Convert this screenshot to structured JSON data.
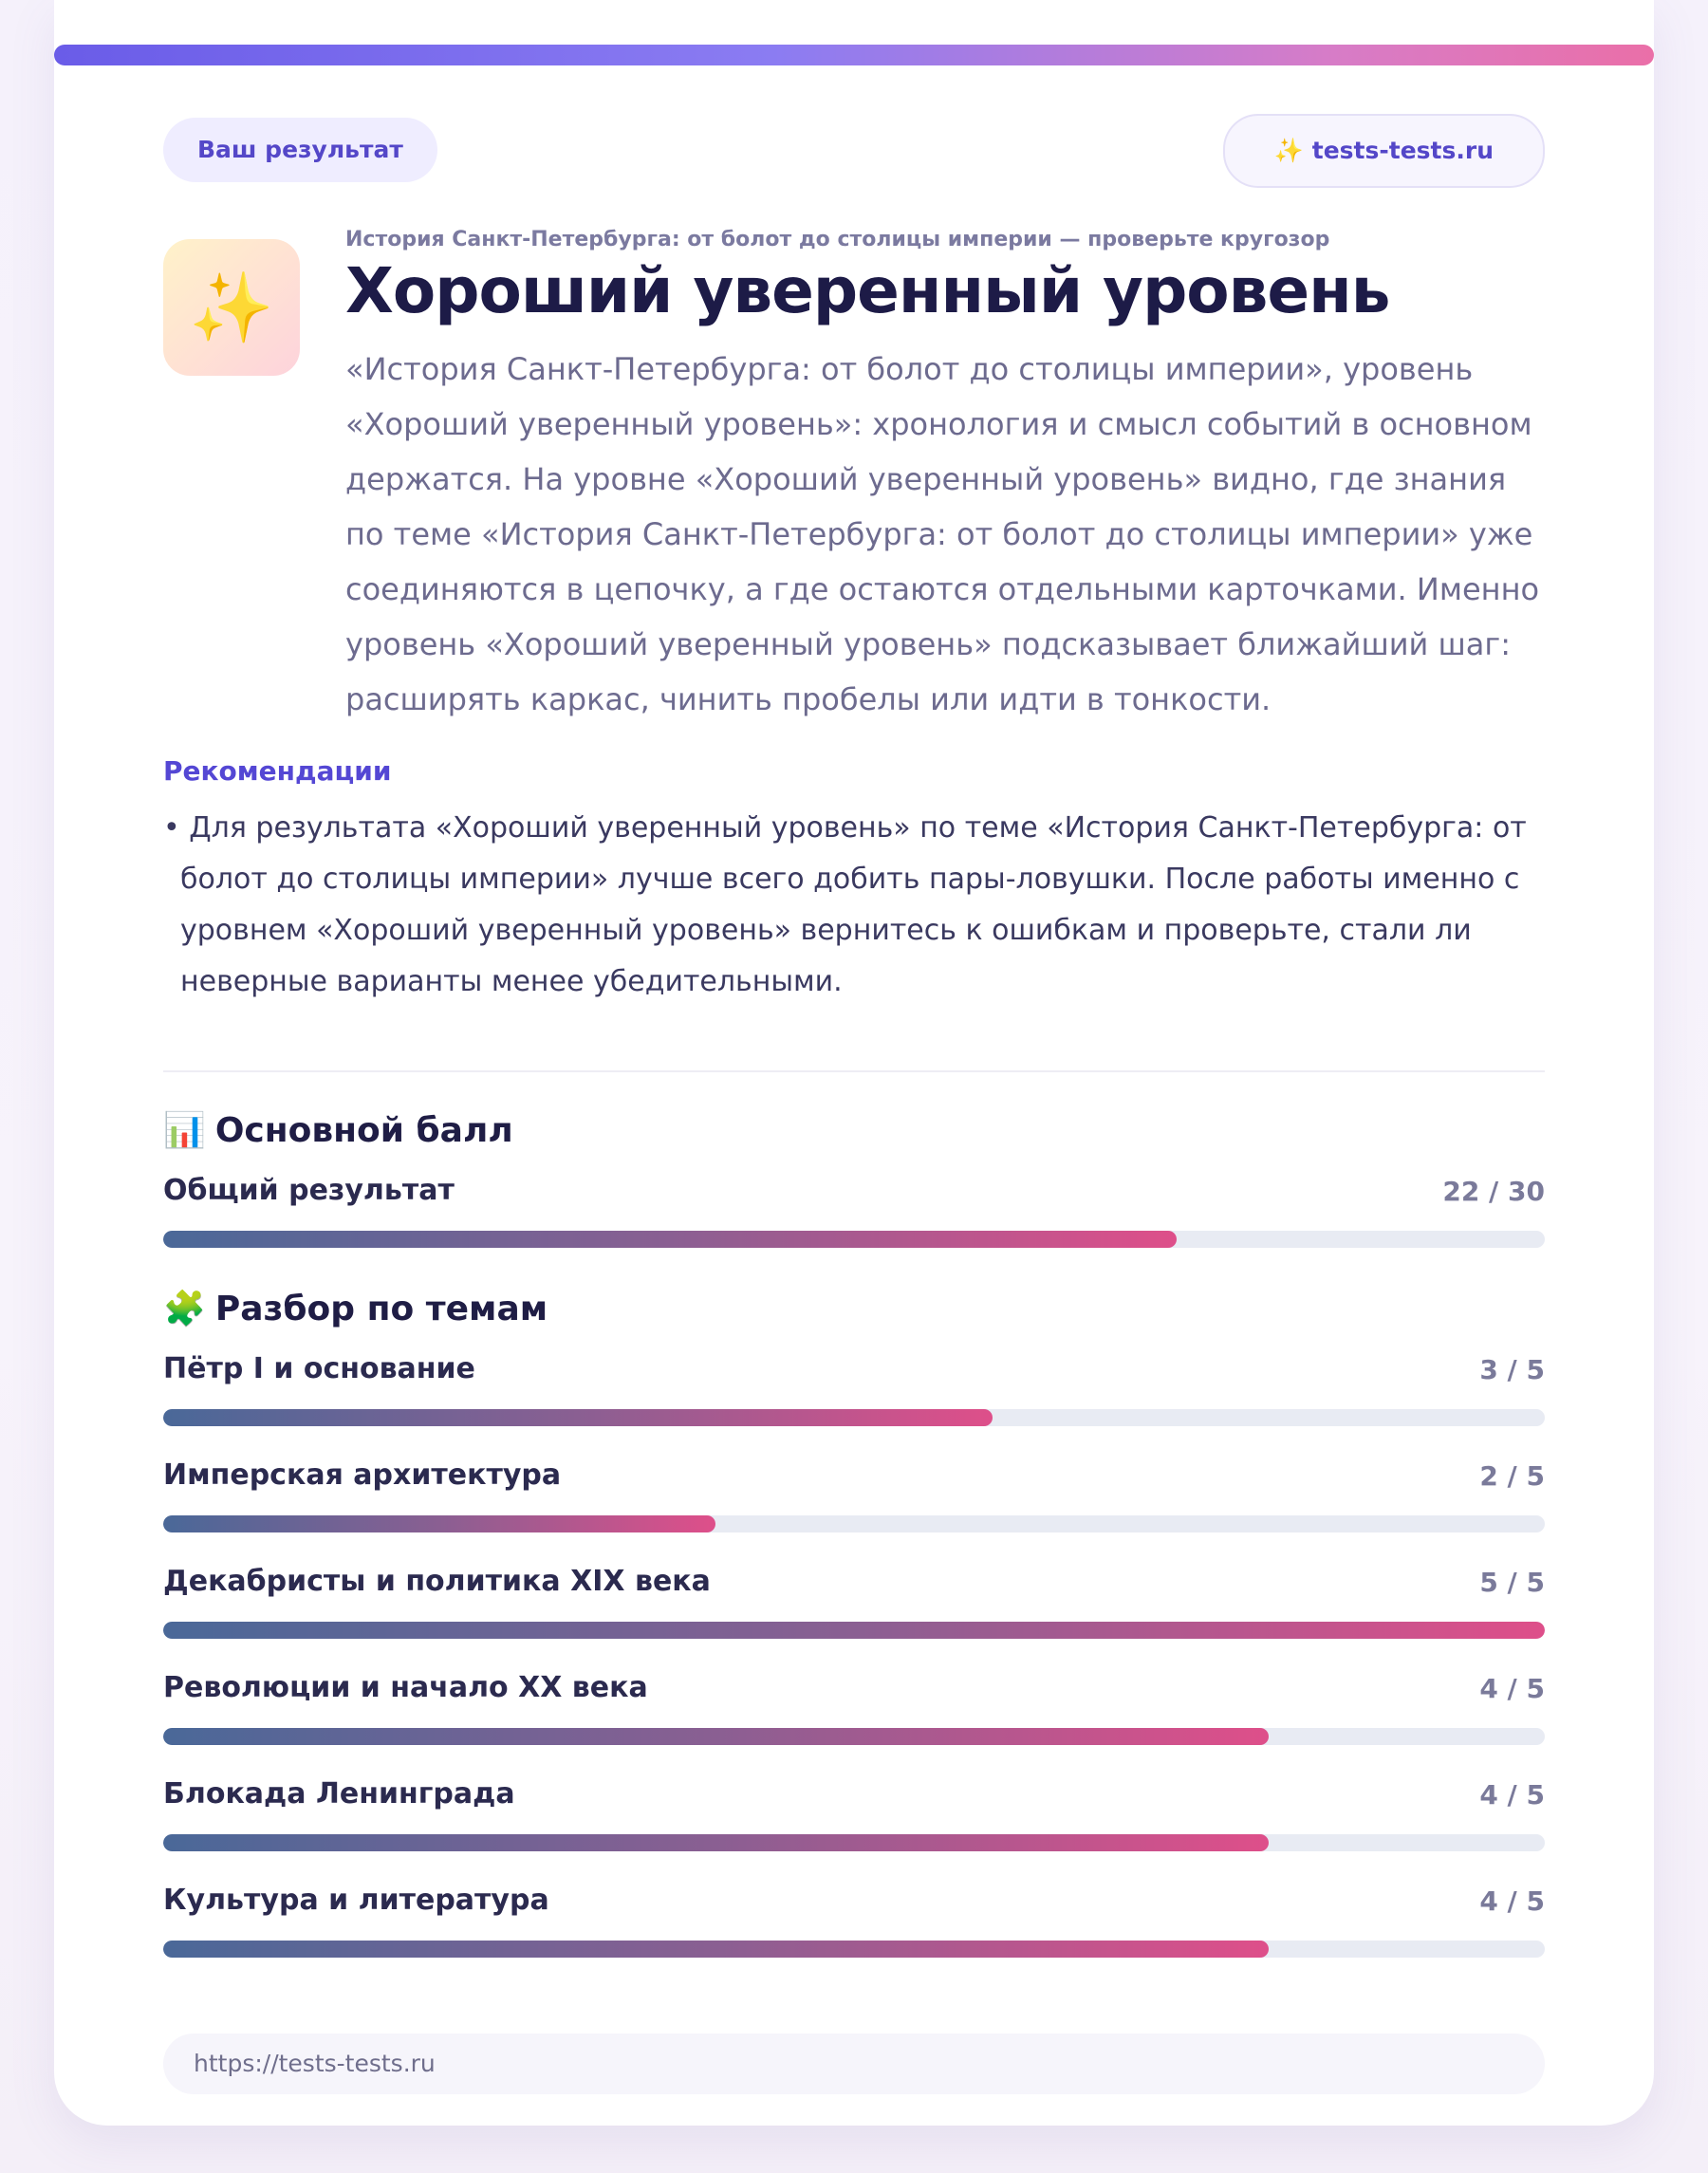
{
  "header": {
    "result_pill": "Ваш результат",
    "site_pill": "✨ tests-tests.ru"
  },
  "hero": {
    "icon": "sparkles-icon",
    "icon_glyph": "✨",
    "subtitle": "История Санкт-Петербурга: от болот до столицы империи — проверьте кругозор",
    "title": "Хороший уверенный уровень",
    "description": "«История Санкт-Петербурга: от болот до столицы империи», уровень «Хороший уверенный уровень»: хронология и смысл событий в основном держатся. На уровне «Хороший уверенный уровень» видно, где знания по теме «История Санкт-Петербурга: от болот до столицы империи» уже соединяются в цепочку, а где остаются отдельными карточками. Именно уровень «Хороший уверенный уровень» подсказывает ближайший шаг: расширять каркас, чинить пробелы или идти в тонкости."
  },
  "recommendations": {
    "heading": "Рекомендации",
    "text": "• Для результата «Хороший уверенный уровень» по теме «История Санкт-Петербурга: от болот до столицы империи» лучше всего добить пары-ловушки. После работы именно с уровнем «Хороший уверенный уровень» вернитесь к ошибкам и проверьте, стали ли неверные варианты менее убедительными."
  },
  "main_score": {
    "emoji": "📊",
    "title": "Основной балл",
    "label": "Общий результат",
    "value_text": "22 / 30",
    "score": 22,
    "max": 30
  },
  "topics": {
    "emoji": "🧩",
    "title": "Разбор по темам",
    "items": [
      {
        "label": "Пётр I и основание",
        "value_text": "3 / 5",
        "score": 3,
        "max": 5
      },
      {
        "label": "Имперская архитектура",
        "value_text": "2 / 5",
        "score": 2,
        "max": 5
      },
      {
        "label": "Декабристы и политика XIX века",
        "value_text": "5 / 5",
        "score": 5,
        "max": 5
      },
      {
        "label": "Революции и начало XX века",
        "value_text": "4 / 5",
        "score": 4,
        "max": 5
      },
      {
        "label": "Блокада Ленинграда",
        "value_text": "4 / 5",
        "score": 4,
        "max": 5
      },
      {
        "label": "Культура и литература",
        "value_text": "4 / 5",
        "score": 4,
        "max": 5
      }
    ]
  },
  "footer": {
    "url": "https://tests-tests.ru"
  },
  "colors": {
    "accent": "#5447c8",
    "bar_start": "#4a6898",
    "bar_end": "#de4f8a",
    "track": "#e8ebf3"
  }
}
